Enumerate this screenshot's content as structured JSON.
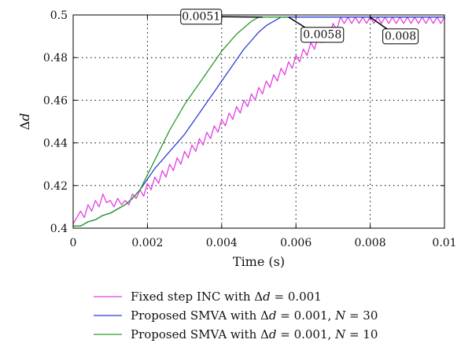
{
  "chart_data": {
    "type": "line",
    "xlabel": "Time (s)",
    "ylabel_prefix": "Δ",
    "ylabel_var": "d",
    "xlim": [
      0,
      0.01
    ],
    "ylim": [
      0.4,
      0.5
    ],
    "xticks": [
      0,
      0.002,
      0.004,
      0.006,
      0.008,
      0.01
    ],
    "xtick_labels": [
      "0",
      "0.002",
      "0.004",
      "0.006",
      "0.008",
      "0.01"
    ],
    "yticks": [
      0.4,
      0.42,
      0.44,
      0.46,
      0.48,
      0.5
    ],
    "ytick_labels": [
      "0.4",
      "0.42",
      "0.44",
      "0.46",
      "0.48",
      "0.5"
    ],
    "grid": true,
    "legend_position": "below",
    "series": [
      {
        "name": "Fixed step INC with Δd = 0.001",
        "color": "#e23fe2",
        "points": [
          [
            0,
            0.402
          ],
          [
            0.0002,
            0.408
          ],
          [
            0.0003,
            0.405
          ],
          [
            0.0004,
            0.411
          ],
          [
            0.0005,
            0.408
          ],
          [
            0.0006,
            0.413
          ],
          [
            0.0007,
            0.41
          ],
          [
            0.0008,
            0.416
          ],
          [
            0.0009,
            0.412
          ],
          [
            0.001,
            0.413
          ],
          [
            0.0011,
            0.41
          ],
          [
            0.0012,
            0.414
          ],
          [
            0.0013,
            0.411
          ],
          [
            0.0014,
            0.413
          ],
          [
            0.0015,
            0.411
          ],
          [
            0.0016,
            0.416
          ],
          [
            0.0017,
            0.414
          ],
          [
            0.0018,
            0.418
          ],
          [
            0.0019,
            0.415
          ],
          [
            0.002,
            0.421
          ],
          [
            0.0021,
            0.418
          ],
          [
            0.0022,
            0.424
          ],
          [
            0.0023,
            0.421
          ],
          [
            0.0024,
            0.427
          ],
          [
            0.0025,
            0.424
          ],
          [
            0.0026,
            0.43
          ],
          [
            0.0027,
            0.427
          ],
          [
            0.0028,
            0.433
          ],
          [
            0.0029,
            0.43
          ],
          [
            0.003,
            0.436
          ],
          [
            0.0031,
            0.433
          ],
          [
            0.0032,
            0.439
          ],
          [
            0.0033,
            0.436
          ],
          [
            0.0034,
            0.442
          ],
          [
            0.0035,
            0.439
          ],
          [
            0.0036,
            0.445
          ],
          [
            0.0037,
            0.442
          ],
          [
            0.0038,
            0.448
          ],
          [
            0.0039,
            0.445
          ],
          [
            0.004,
            0.451
          ],
          [
            0.0041,
            0.448
          ],
          [
            0.0042,
            0.454
          ],
          [
            0.0043,
            0.451
          ],
          [
            0.0044,
            0.457
          ],
          [
            0.0045,
            0.454
          ],
          [
            0.0046,
            0.46
          ],
          [
            0.0047,
            0.457
          ],
          [
            0.0048,
            0.463
          ],
          [
            0.0049,
            0.46
          ],
          [
            0.005,
            0.466
          ],
          [
            0.0051,
            0.463
          ],
          [
            0.0052,
            0.469
          ],
          [
            0.0053,
            0.466
          ],
          [
            0.0054,
            0.472
          ],
          [
            0.0055,
            0.469
          ],
          [
            0.0056,
            0.475
          ],
          [
            0.0057,
            0.472
          ],
          [
            0.0058,
            0.478
          ],
          [
            0.0059,
            0.475
          ],
          [
            0.006,
            0.481
          ],
          [
            0.0061,
            0.478
          ],
          [
            0.0062,
            0.484
          ],
          [
            0.0063,
            0.481
          ],
          [
            0.0064,
            0.487
          ],
          [
            0.0065,
            0.484
          ],
          [
            0.0066,
            0.49
          ],
          [
            0.0067,
            0.487
          ],
          [
            0.0068,
            0.493
          ],
          [
            0.0069,
            0.49
          ],
          [
            0.007,
            0.496
          ],
          [
            0.0071,
            0.493
          ],
          [
            0.0072,
            0.499
          ],
          [
            0.0073,
            0.496
          ],
          [
            0.0074,
            0.499
          ],
          [
            0.0075,
            0.496
          ],
          [
            0.0076,
            0.499
          ],
          [
            0.0077,
            0.496
          ],
          [
            0.0078,
            0.499
          ],
          [
            0.0079,
            0.496
          ],
          [
            0.008,
            0.499
          ],
          [
            0.0081,
            0.496
          ],
          [
            0.0082,
            0.499
          ],
          [
            0.0083,
            0.496
          ],
          [
            0.0084,
            0.499
          ],
          [
            0.0085,
            0.496
          ],
          [
            0.0086,
            0.499
          ],
          [
            0.0087,
            0.496
          ],
          [
            0.0088,
            0.499
          ],
          [
            0.0089,
            0.496
          ],
          [
            0.009,
            0.499
          ],
          [
            0.0091,
            0.496
          ],
          [
            0.0092,
            0.499
          ],
          [
            0.0093,
            0.496
          ],
          [
            0.0094,
            0.499
          ],
          [
            0.0095,
            0.496
          ],
          [
            0.0096,
            0.499
          ],
          [
            0.0097,
            0.496
          ],
          [
            0.0098,
            0.499
          ],
          [
            0.0099,
            0.496
          ],
          [
            0.01,
            0.499
          ]
        ]
      },
      {
        "name": "Proposed SMVA with Δd = 0.001, N = 30",
        "color": "#2b3fd6",
        "points": [
          [
            0,
            0.401
          ],
          [
            0.0002,
            0.401
          ],
          [
            0.0004,
            0.403
          ],
          [
            0.0006,
            0.404
          ],
          [
            0.0008,
            0.406
          ],
          [
            0.001,
            0.407
          ],
          [
            0.0012,
            0.409
          ],
          [
            0.0014,
            0.411
          ],
          [
            0.0016,
            0.414
          ],
          [
            0.0018,
            0.418
          ],
          [
            0.002,
            0.423
          ],
          [
            0.0022,
            0.428
          ],
          [
            0.0024,
            0.432
          ],
          [
            0.0026,
            0.436
          ],
          [
            0.0028,
            0.44
          ],
          [
            0.003,
            0.444
          ],
          [
            0.0032,
            0.449
          ],
          [
            0.0034,
            0.454
          ],
          [
            0.0036,
            0.459
          ],
          [
            0.0038,
            0.464
          ],
          [
            0.004,
            0.469
          ],
          [
            0.0042,
            0.474
          ],
          [
            0.0044,
            0.479
          ],
          [
            0.0046,
            0.484
          ],
          [
            0.0048,
            0.488
          ],
          [
            0.005,
            0.492
          ],
          [
            0.0052,
            0.495
          ],
          [
            0.0054,
            0.497
          ],
          [
            0.0056,
            0.499
          ],
          [
            0.0058,
            0.499
          ],
          [
            0.007,
            0.499
          ],
          [
            0.008,
            0.499
          ],
          [
            0.009,
            0.499
          ],
          [
            0.01,
            0.499
          ]
        ]
      },
      {
        "name": "Proposed SMVA with Δd = 0.001, N = 10",
        "color": "#2a9a2a",
        "points": [
          [
            0,
            0.401
          ],
          [
            0.0002,
            0.401
          ],
          [
            0.0004,
            0.403
          ],
          [
            0.0006,
            0.404
          ],
          [
            0.0008,
            0.406
          ],
          [
            0.001,
            0.407
          ],
          [
            0.0012,
            0.409
          ],
          [
            0.0014,
            0.411
          ],
          [
            0.0016,
            0.414
          ],
          [
            0.0018,
            0.418
          ],
          [
            0.002,
            0.425
          ],
          [
            0.0022,
            0.432
          ],
          [
            0.0024,
            0.439
          ],
          [
            0.0026,
            0.446
          ],
          [
            0.0028,
            0.452
          ],
          [
            0.003,
            0.458
          ],
          [
            0.0032,
            0.463
          ],
          [
            0.0034,
            0.468
          ],
          [
            0.0036,
            0.473
          ],
          [
            0.0038,
            0.478
          ],
          [
            0.004,
            0.483
          ],
          [
            0.0042,
            0.487
          ],
          [
            0.0044,
            0.491
          ],
          [
            0.0046,
            0.494
          ],
          [
            0.0048,
            0.497
          ],
          [
            0.005,
            0.499
          ],
          [
            0.0051,
            0.499
          ],
          [
            0.0058,
            0.499
          ]
        ]
      }
    ],
    "annotations": [
      {
        "text": "0.0051",
        "x": 0.0051,
        "y": 0.499
      },
      {
        "text": "0.0058",
        "x": 0.0058,
        "y": 0.499
      },
      {
        "text": "0.008",
        "x": 0.008,
        "y": 0.499
      }
    ],
    "legend": [
      {
        "prefix": "Fixed step INC with Δ",
        "var1": "d",
        "mid": " = 0.001",
        "var2": "",
        "suffix": "",
        "color": "#e23fe2"
      },
      {
        "prefix": "Proposed SMVA with Δ",
        "var1": "d",
        "mid": " = 0.001, ",
        "var2": "N",
        "suffix": " = 30",
        "color": "#2b3fd6"
      },
      {
        "prefix": "Proposed SMVA with Δ",
        "var1": "d",
        "mid": " = 0.001, ",
        "var2": "N",
        "suffix": " = 10",
        "color": "#2a9a2a"
      }
    ]
  }
}
